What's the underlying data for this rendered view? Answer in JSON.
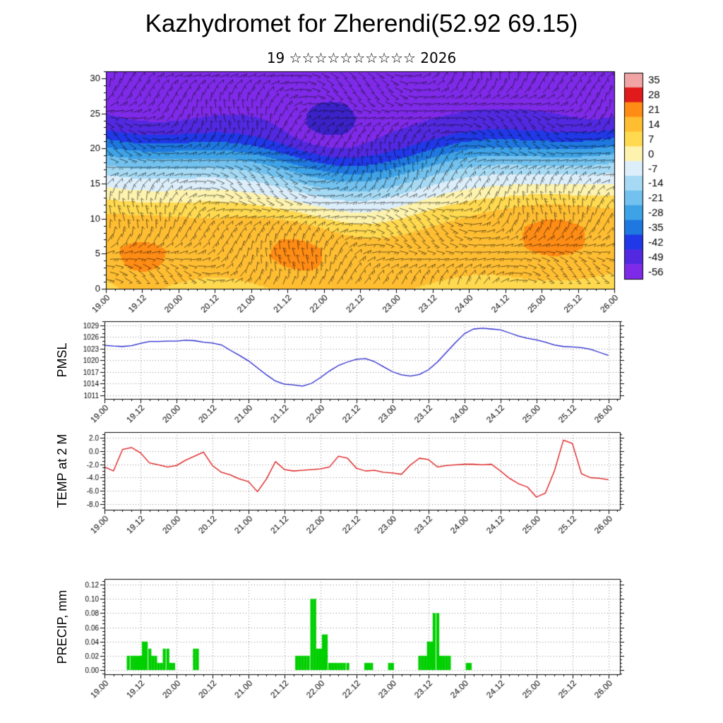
{
  "header": {
    "title": "Kazhydromet for Zherendi(52.92 69.15)",
    "subtitle": "19 ☆☆☆☆☆☆☆☆☆☆ 2026"
  },
  "x_axis": {
    "labels": [
      "19.00",
      "19.12",
      "20.00",
      "20.12",
      "21.00",
      "21.12",
      "22.00",
      "22.12",
      "23.00",
      "23.12",
      "24.00",
      "24.12",
      "25.00",
      "25.12",
      "26.00"
    ],
    "start": 19.0,
    "step": 0.5
  },
  "colorbar": {
    "labels": [
      "35",
      "28",
      "21",
      "14",
      "7",
      "0",
      "-7",
      "-14",
      "-21",
      "-28",
      "-35",
      "-42",
      "-49",
      "-56"
    ]
  },
  "chart_data": [
    {
      "type": "heatmap",
      "name": "temperature-height cross-section with wind barbs",
      "ylabel": "",
      "ylim": [
        0,
        31
      ],
      "yticks": [
        0,
        5,
        10,
        15,
        20,
        25,
        30
      ],
      "levels": [
        35,
        28,
        21,
        14,
        7,
        0,
        -7,
        -14,
        -21,
        -28,
        -35,
        -42,
        -49,
        -56
      ],
      "band_colors": [
        "#f0a4a4",
        "#e11b1b",
        "#ff8c14",
        "#ffbe32",
        "#ffd94f",
        "#fdf3ae",
        "#dceefa",
        "#a6daf4",
        "#72c1ee",
        "#3ea2e6",
        "#1e78e0",
        "#2038e8",
        "#5229e0",
        "#7e2ae8",
        "#3a22c8"
      ],
      "field": {
        "profile": [
          [
            0,
            4.5
          ],
          [
            2,
            8.5
          ],
          [
            5,
            10
          ],
          [
            8,
            9
          ],
          [
            10,
            6
          ],
          [
            11,
            3
          ],
          [
            12,
            -1
          ],
          [
            13,
            -5
          ],
          [
            14,
            -9
          ],
          [
            15,
            -13
          ],
          [
            16,
            -18
          ],
          [
            17,
            -23
          ],
          [
            18,
            -28
          ],
          [
            19,
            -34
          ],
          [
            20,
            -40
          ],
          [
            21,
            -46
          ],
          [
            22,
            -50
          ],
          [
            23,
            -53.5
          ],
          [
            25,
            -56.5
          ],
          [
            30,
            -57.5
          ]
        ],
        "wave": [
          1.8,
          1.0,
          -1.4,
          0.9,
          2.3,
          0.8
        ],
        "blobs": [
          [
            0.07,
            4,
            6,
            0.06,
            3.5
          ],
          [
            0.38,
            6,
            6,
            0.07,
            4
          ],
          [
            0.88,
            9,
            7,
            0.07,
            4.5
          ],
          [
            0.44,
            24,
            -10,
            0.05,
            2.6
          ],
          [
            0.1,
            26,
            -2.5,
            0.08,
            3
          ],
          [
            0.97,
            26,
            -2.5,
            0.05,
            3
          ]
        ]
      }
    },
    {
      "type": "line",
      "ylabel": "PMSL",
      "color": "#2222cc",
      "ylim": [
        1010,
        1030
      ],
      "yticks": [
        1029,
        1026,
        1023,
        1020,
        1017,
        1014,
        1011
      ],
      "ytick_labels": [
        "1029",
        "1026",
        "1023",
        "1020",
        "1017",
        "1014",
        "1011"
      ],
      "y_minor": 1,
      "x_start": 19.0,
      "x_step": 0.125,
      "values": [
        1023.8,
        1023.6,
        1023.5,
        1023.7,
        1024.3,
        1024.8,
        1024.8,
        1024.9,
        1024.9,
        1025.1,
        1025.0,
        1024.6,
        1024.4,
        1023.9,
        1022.5,
        1021.2,
        1019.8,
        1018.0,
        1016.2,
        1014.6,
        1013.8,
        1013.6,
        1013.3,
        1014.0,
        1015.5,
        1017.2,
        1018.6,
        1019.5,
        1020.2,
        1020.4,
        1019.6,
        1018.3,
        1017.0,
        1016.2,
        1015.9,
        1016.3,
        1017.5,
        1019.5,
        1022.0,
        1024.5,
        1026.8,
        1028.0,
        1028.2,
        1028.0,
        1027.8,
        1027.0,
        1026.2,
        1025.6,
        1025.2,
        1024.6,
        1023.9,
        1023.5,
        1023.4,
        1023.2,
        1022.8,
        1022.0,
        1021.2
      ]
    },
    {
      "type": "line",
      "ylabel": "TEMP at 2 M",
      "color": "#dd1111",
      "ylim": [
        -8.8,
        2.8
      ],
      "yticks": [
        2,
        0,
        -2,
        -4,
        -6,
        -8
      ],
      "ytick_labels": [
        "2.0",
        "0.0",
        "-2.0",
        "-4.0",
        "-6.0",
        "-8.0"
      ],
      "y_minor": 0.5,
      "x_start": 19.0,
      "x_step": 0.125,
      "values": [
        -2.4,
        -3.0,
        0.2,
        0.5,
        -0.3,
        -1.8,
        -2.1,
        -2.4,
        -2.2,
        -1.4,
        -0.8,
        -0.2,
        -2.2,
        -3.2,
        -3.6,
        -4.2,
        -4.6,
        -6.1,
        -4.2,
        -1.6,
        -2.8,
        -3.0,
        -2.9,
        -2.8,
        -2.7,
        -2.4,
        -0.8,
        -1.1,
        -2.6,
        -3.0,
        -2.9,
        -3.2,
        -3.3,
        -3.5,
        -2.1,
        -1.1,
        -1.3,
        -2.4,
        -2.2,
        -2.1,
        -2.0,
        -2.0,
        -2.1,
        -2.0,
        -3.0,
        -4.1,
        -4.9,
        -5.4,
        -6.9,
        -6.3,
        -3.0,
        1.6,
        1.1,
        -3.4,
        -4.0,
        -4.1,
        -4.3
      ]
    },
    {
      "type": "bar",
      "ylabel": "PRECIP, mm",
      "color": "#00cf00",
      "ylim": [
        -0.006,
        0.128
      ],
      "yticks": [
        0.12,
        0.1,
        0.08,
        0.06,
        0.04,
        0.02,
        0.0
      ],
      "ytick_labels": [
        "0.12",
        "0.10",
        "0.08",
        "0.06",
        "0.04",
        "0.02",
        "0.00"
      ],
      "y_minor": 0.005,
      "bar_width_days": 0.0417,
      "bars": [
        [
          19.33,
          0.02
        ],
        [
          19.38,
          0.02
        ],
        [
          19.42,
          0.02
        ],
        [
          19.46,
          0.02
        ],
        [
          19.5,
          0.02
        ],
        [
          19.54,
          0.04
        ],
        [
          19.58,
          0.04
        ],
        [
          19.63,
          0.03
        ],
        [
          19.67,
          0.02
        ],
        [
          19.71,
          0.02
        ],
        [
          19.75,
          0.01
        ],
        [
          19.79,
          0.01
        ],
        [
          19.83,
          0.03
        ],
        [
          19.88,
          0.03
        ],
        [
          19.92,
          0.01
        ],
        [
          19.96,
          0.01
        ],
        [
          20.25,
          0.03
        ],
        [
          20.29,
          0.03
        ],
        [
          21.67,
          0.02
        ],
        [
          21.71,
          0.02
        ],
        [
          21.75,
          0.02
        ],
        [
          21.79,
          0.02
        ],
        [
          21.83,
          0.02
        ],
        [
          21.88,
          0.1
        ],
        [
          21.92,
          0.1
        ],
        [
          21.96,
          0.03
        ],
        [
          22.0,
          0.03
        ],
        [
          22.04,
          0.05
        ],
        [
          22.08,
          0.05
        ],
        [
          22.13,
          0.01
        ],
        [
          22.17,
          0.01
        ],
        [
          22.21,
          0.01
        ],
        [
          22.25,
          0.01
        ],
        [
          22.29,
          0.01
        ],
        [
          22.33,
          0.01
        ],
        [
          22.38,
          0.01
        ],
        [
          22.63,
          0.01
        ],
        [
          22.67,
          0.01
        ],
        [
          22.71,
          0.01
        ],
        [
          22.96,
          0.01
        ],
        [
          23.0,
          0.01
        ],
        [
          23.38,
          0.02
        ],
        [
          23.42,
          0.02
        ],
        [
          23.46,
          0.02
        ],
        [
          23.5,
          0.04
        ],
        [
          23.54,
          0.04
        ],
        [
          23.58,
          0.08
        ],
        [
          23.63,
          0.08
        ],
        [
          23.67,
          0.02
        ],
        [
          23.71,
          0.02
        ],
        [
          23.75,
          0.02
        ],
        [
          23.79,
          0.02
        ],
        [
          24.04,
          0.01
        ],
        [
          24.08,
          0.01
        ]
      ]
    }
  ]
}
